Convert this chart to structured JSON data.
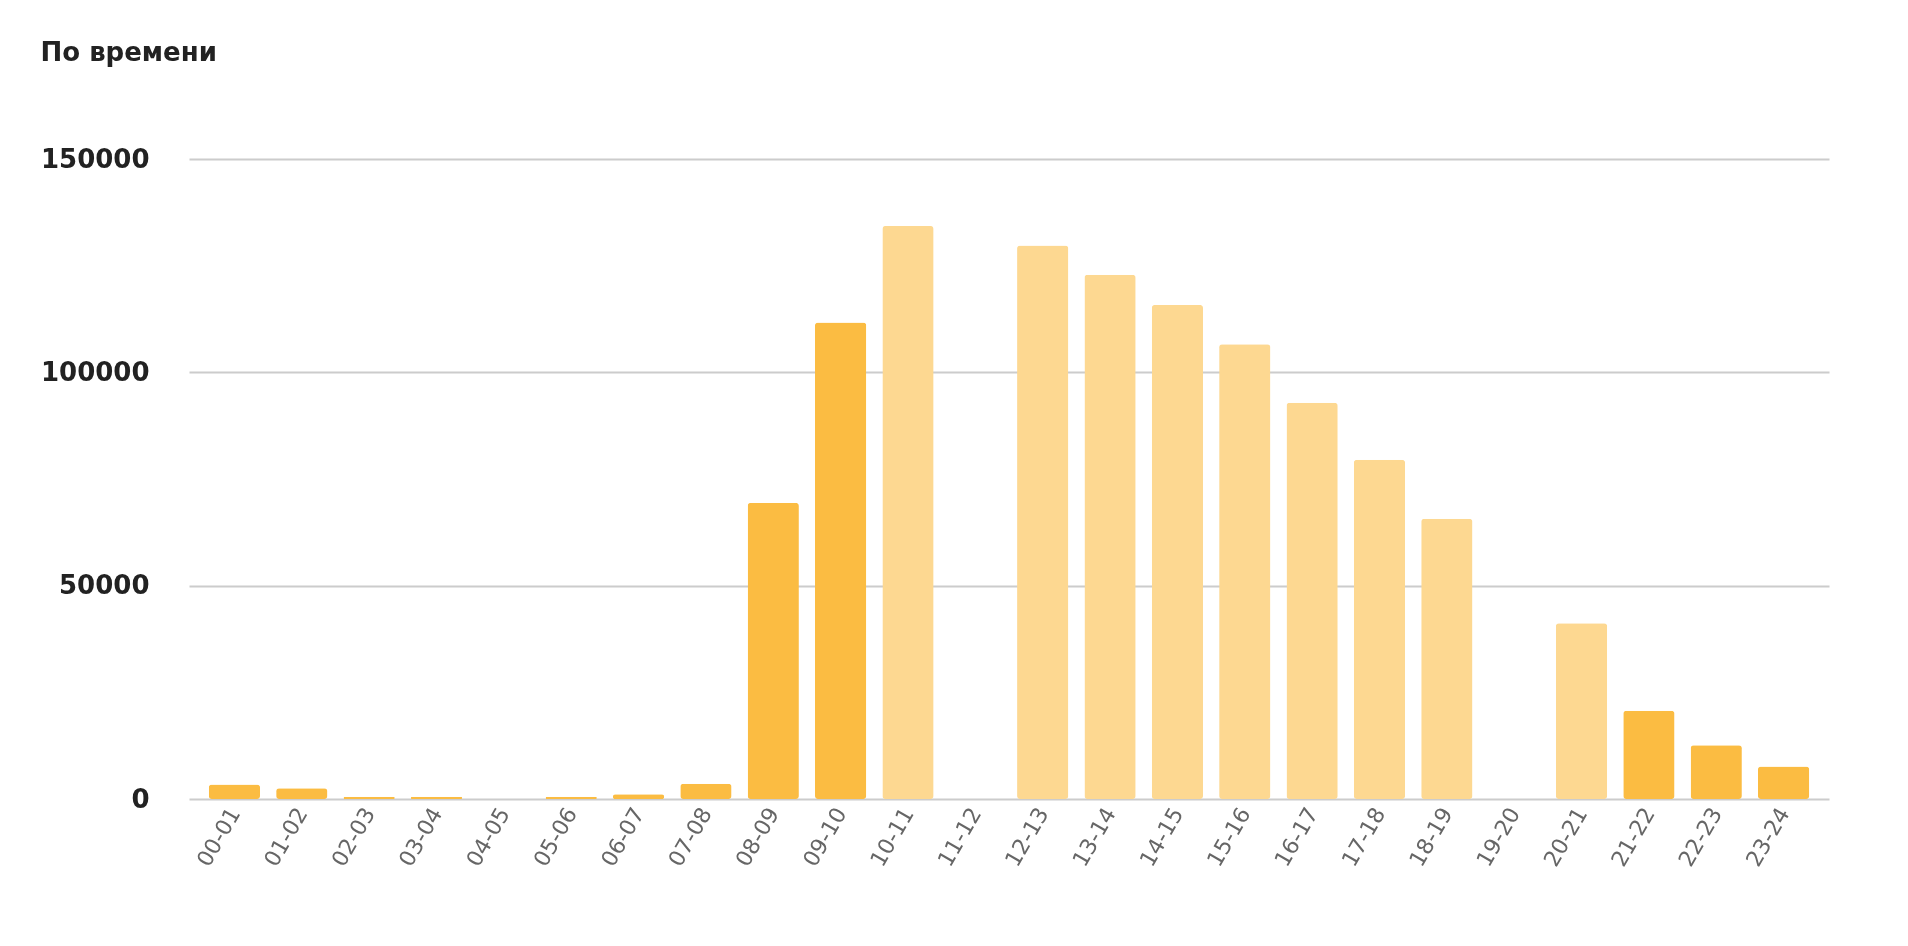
{
  "chart_data": {
    "type": "bar",
    "title": "По времени",
    "categories": [
      "00-01",
      "01-02",
      "02-03",
      "03-04",
      "04-05",
      "05-06",
      "06-07",
      "07-08",
      "08-09",
      "09-10",
      "10-11",
      "11-12",
      "12-13",
      "13-14",
      "14-15",
      "15-16",
      "16-17",
      "17-18",
      "18-19",
      "19-20",
      "20-21",
      "21-22",
      "22-23",
      "23-24"
    ],
    "values": [
      3400,
      2500,
      500,
      500,
      null,
      500,
      1100,
      3600,
      69400,
      111700,
      134300,
      null,
      129700,
      122900,
      115800,
      106600,
      92900,
      79500,
      65700,
      null,
      41200,
      20700,
      12600,
      7600
    ],
    "colors": [
      "#fbbc42",
      "#fbbc42",
      "#fbbc42",
      "#fbbc42",
      null,
      "#fbbc42",
      "#fbbc42",
      "#fbbc42",
      "#fbbc42",
      "#fbbc42",
      "#fdd891",
      null,
      "#fdd891",
      "#fdd891",
      "#fdd891",
      "#fdd891",
      "#fdd891",
      "#fdd891",
      "#fdd891",
      null,
      "#fdd891",
      "#fbbc42",
      "#fbbc42",
      "#fbbc42"
    ],
    "ylim": [
      0,
      150000
    ],
    "yticks": [
      0,
      50000,
      100000,
      150000
    ],
    "grid": "y",
    "legend": false
  }
}
